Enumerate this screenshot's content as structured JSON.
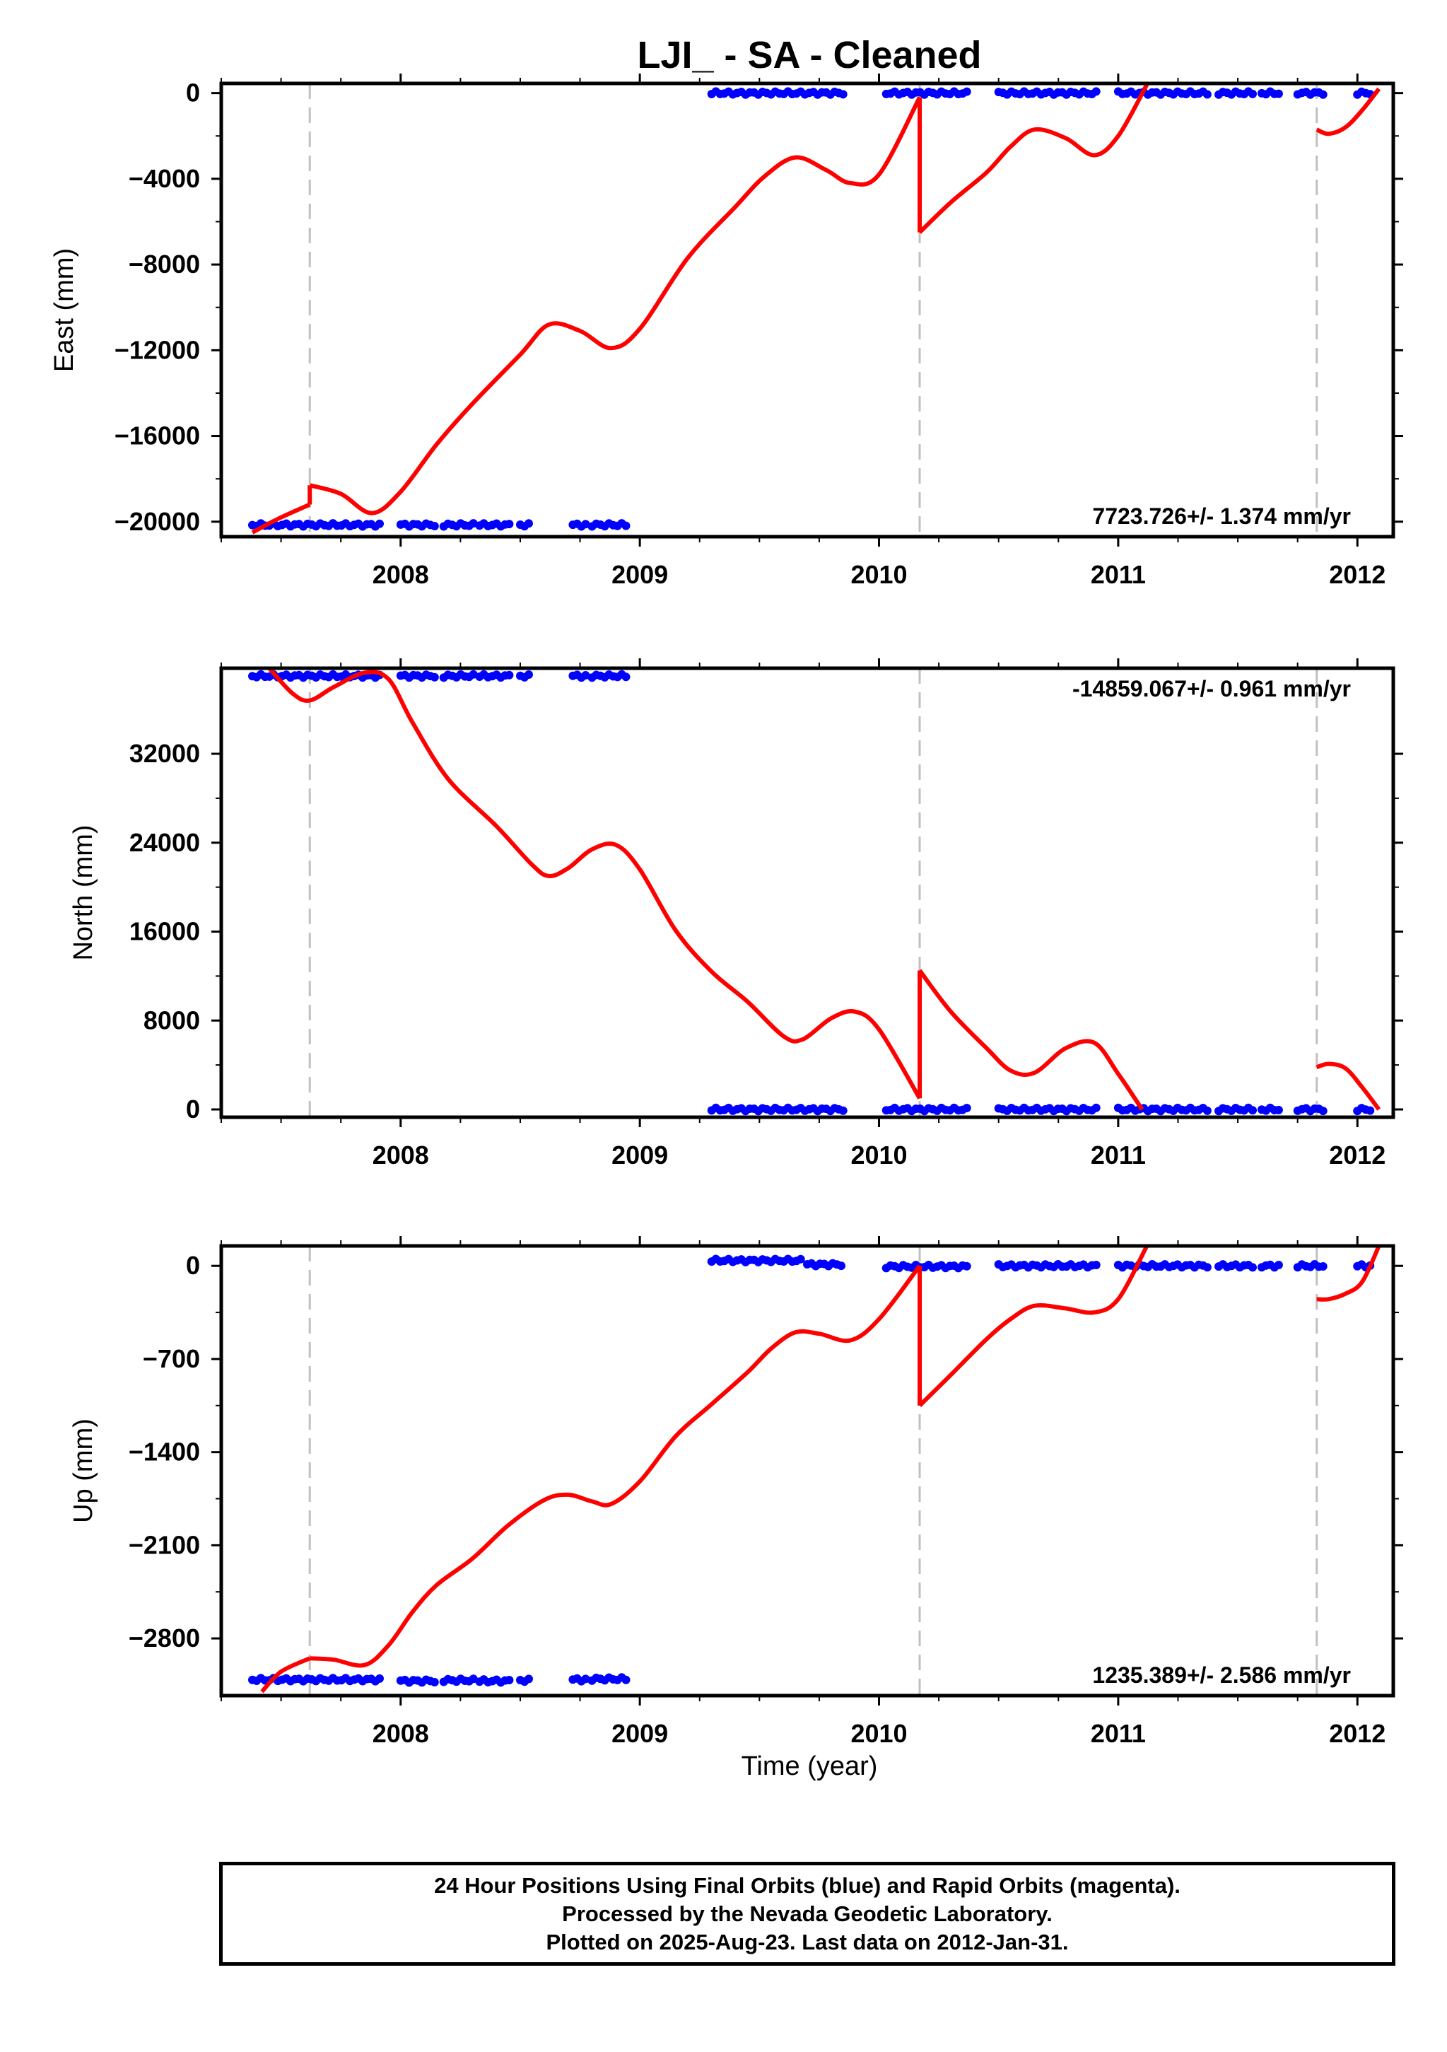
{
  "title": "LJI_  - SA - Cleaned",
  "footer": {
    "line1": "24 Hour Positions Using Final Orbits (blue) and Rapid Orbits (magenta).",
    "line2": "Processed by the Nevada Geodetic Laboratory.",
    "line3": "Plotted on 2025-Aug-23. Last data on 2012-Jan-31."
  },
  "colors": {
    "final_orbits": "#0000ff",
    "model_fit": "#ff0000",
    "event_lines": "#c0c0c0",
    "frame": "#000000"
  },
  "chart_data": [
    {
      "type": "scatter",
      "panel": "east",
      "ylabel": "East (mm)",
      "xlabel": "",
      "xlim": [
        2007.25,
        2012.15
      ],
      "ylim": [
        -20700,
        450
      ],
      "yticks": [
        0,
        -4000,
        -8000,
        -12000,
        -16000,
        -20000
      ],
      "ytick_labels": [
        "0",
        "−4000",
        "−8000",
        "−12000",
        "−16000",
        "−20000"
      ],
      "xticks": [
        2008,
        2009,
        2010,
        2011,
        2012
      ],
      "xtick_labels": [
        "2008",
        "2009",
        "2010",
        "2011",
        "2012"
      ],
      "rate_label": "7723.726+/- 1.374 mm/yr",
      "rate_position": "bottom-right",
      "event_lines": [
        2007.62,
        2010.17,
        2011.83
      ],
      "data_segments": [
        {
          "x": [
            2007.38,
            2007.92
          ],
          "y": -20150
        },
        {
          "x": [
            2008.0,
            2008.15
          ],
          "y": -20150
        },
        {
          "x": [
            2008.18,
            2008.32
          ],
          "y": -20150
        },
        {
          "x": [
            2008.33,
            2008.47
          ],
          "y": -20150
        },
        {
          "x": [
            2008.5,
            2008.55
          ],
          "y": -20150
        },
        {
          "x": [
            2008.72,
            2008.78
          ],
          "y": -20150
        },
        {
          "x": [
            2008.8,
            2008.95
          ],
          "y": -20150
        },
        {
          "x": [
            2009.3,
            2009.85
          ],
          "y": 0
        },
        {
          "x": [
            2010.03,
            2010.38
          ],
          "y": 0
        },
        {
          "x": [
            2010.5,
            2010.92
          ],
          "y": 0
        },
        {
          "x": [
            2011.0,
            2011.38
          ],
          "y": 0
        },
        {
          "x": [
            2011.42,
            2011.57
          ],
          "y": 0
        },
        {
          "x": [
            2011.6,
            2011.68
          ],
          "y": 0
        },
        {
          "x": [
            2011.75,
            2011.87
          ],
          "y": 0
        },
        {
          "x": [
            2012.0,
            2012.07
          ],
          "y": 0
        }
      ],
      "model_segments": [
        {
          "x": [
            2007.38,
            2007.5,
            2007.62
          ],
          "y": [
            -20500,
            -19800,
            -19200
          ]
        },
        {
          "x": [
            2007.62,
            2007.75,
            2007.88,
            2008.0,
            2008.15,
            2008.3,
            2008.5,
            2008.62,
            2008.75,
            2008.88,
            2009.0,
            2009.2,
            2009.4,
            2009.52,
            2009.65,
            2009.78,
            2009.88,
            2010.0,
            2010.17
          ],
          "y": [
            -18300,
            -18700,
            -19600,
            -18600,
            -16400,
            -14500,
            -12200,
            -10800,
            -11100,
            -11900,
            -11000,
            -7700,
            -5300,
            -3900,
            -3000,
            -3600,
            -4200,
            -3800,
            -200
          ]
        },
        {
          "x": [
            2010.17,
            2010.3,
            2010.45,
            2010.55,
            2010.65,
            2010.78,
            2010.9,
            2011.0,
            2011.12
          ],
          "y": [
            -6500,
            -5100,
            -3700,
            -2500,
            -1700,
            -2100,
            -2900,
            -2000,
            400
          ]
        },
        {
          "x": [
            2011.83,
            2011.88,
            2011.95,
            2012.02,
            2012.09
          ],
          "y": [
            -1700,
            -1900,
            -1600,
            -800,
            200
          ]
        }
      ]
    },
    {
      "type": "scatter",
      "panel": "north",
      "ylabel": "North (mm)",
      "xlabel": "",
      "xlim": [
        2007.25,
        2012.15
      ],
      "ylim": [
        -700,
        39700
      ],
      "yticks": [
        0,
        8000,
        16000,
        24000,
        32000
      ],
      "ytick_labels": [
        "0",
        "8000",
        "16000",
        "24000",
        "32000"
      ],
      "xticks": [
        2008,
        2009,
        2010,
        2011,
        2012
      ],
      "xtick_labels": [
        "2008",
        "2009",
        "2010",
        "2011",
        "2012"
      ],
      "rate_label": "-14859.067+/- 0.961 mm/yr",
      "rate_position": "top-right",
      "event_lines": [
        2007.62,
        2010.17,
        2011.83
      ],
      "data_segments": [
        {
          "x": [
            2007.38,
            2007.92
          ],
          "y": 39000
        },
        {
          "x": [
            2008.0,
            2008.15
          ],
          "y": 39000
        },
        {
          "x": [
            2008.18,
            2008.32
          ],
          "y": 39000
        },
        {
          "x": [
            2008.33,
            2008.47
          ],
          "y": 39000
        },
        {
          "x": [
            2008.5,
            2008.55
          ],
          "y": 39000
        },
        {
          "x": [
            2008.72,
            2008.78
          ],
          "y": 39000
        },
        {
          "x": [
            2008.8,
            2008.95
          ],
          "y": 39000
        },
        {
          "x": [
            2009.3,
            2009.85
          ],
          "y": 0
        },
        {
          "x": [
            2010.03,
            2010.38
          ],
          "y": 0
        },
        {
          "x": [
            2010.5,
            2010.92
          ],
          "y": 0
        },
        {
          "x": [
            2011.0,
            2011.38
          ],
          "y": 0
        },
        {
          "x": [
            2011.42,
            2011.57
          ],
          "y": 0
        },
        {
          "x": [
            2011.6,
            2011.68
          ],
          "y": 0
        },
        {
          "x": [
            2011.75,
            2011.87
          ],
          "y": 0
        },
        {
          "x": [
            2012.0,
            2012.07
          ],
          "y": 0
        }
      ],
      "model_segments": [
        {
          "x": [
            2007.45,
            2007.55,
            2007.62,
            2007.72,
            2007.85,
            2007.95,
            2008.05,
            2008.2,
            2008.4,
            2008.55,
            2008.62,
            2008.7,
            2008.8,
            2008.9,
            2009.0,
            2009.15,
            2009.3,
            2009.45,
            2009.6,
            2009.68,
            2009.8,
            2009.9,
            2010.0,
            2010.17
          ],
          "y": [
            39700,
            37400,
            36800,
            38000,
            39300,
            38700,
            34800,
            29700,
            25500,
            22000,
            21000,
            21700,
            23400,
            23800,
            21600,
            16100,
            12400,
            9700,
            6600,
            6300,
            8200,
            8800,
            7200,
            1000
          ]
        },
        {
          "x": [
            2010.17,
            2010.3,
            2010.45,
            2010.55,
            2010.65,
            2010.78,
            2010.9,
            2011.0,
            2011.1
          ],
          "y": [
            12500,
            8800,
            5500,
            3500,
            3300,
            5500,
            6000,
            3200,
            0
          ]
        },
        {
          "x": [
            2011.83,
            2011.88,
            2011.95,
            2012.02,
            2012.09
          ],
          "y": [
            3800,
            4100,
            3700,
            2000,
            0
          ]
        }
      ]
    },
    {
      "type": "scatter",
      "panel": "up",
      "ylabel": "Up (mm)",
      "xlabel": "Time (year)",
      "xlim": [
        2007.25,
        2012.15
      ],
      "ylim": [
        -3230,
        150
      ],
      "yticks": [
        0,
        -700,
        -1400,
        -2100,
        -2800
      ],
      "ytick_labels": [
        "0",
        "−700",
        "−1400",
        "−2100",
        "−2800"
      ],
      "xticks": [
        2008,
        2009,
        2010,
        2011,
        2012
      ],
      "xtick_labels": [
        "2008",
        "2009",
        "2010",
        "2011",
        "2012"
      ],
      "rate_label": "1235.389+/- 2.586 mm/yr",
      "rate_position": "bottom-right",
      "event_lines": [
        2007.62,
        2010.17,
        2011.83
      ],
      "data_segments": [
        {
          "x": [
            2007.38,
            2007.92
          ],
          "y": -3110
        },
        {
          "x": [
            2008.0,
            2008.15
          ],
          "y": -3120
        },
        {
          "x": [
            2008.18,
            2008.32
          ],
          "y": -3115
        },
        {
          "x": [
            2008.33,
            2008.47
          ],
          "y": -3120
        },
        {
          "x": [
            2008.5,
            2008.55
          ],
          "y": -3115
        },
        {
          "x": [
            2008.72,
            2008.78
          ],
          "y": -3110
        },
        {
          "x": [
            2008.8,
            2008.95
          ],
          "y": -3105
        },
        {
          "x": [
            2009.3,
            2009.68
          ],
          "y": 40
        },
        {
          "x": [
            2009.7,
            2009.85
          ],
          "y": 10
        },
        {
          "x": [
            2010.03,
            2010.38
          ],
          "y": -5
        },
        {
          "x": [
            2010.5,
            2010.92
          ],
          "y": 0
        },
        {
          "x": [
            2011.0,
            2011.38
          ],
          "y": 0
        },
        {
          "x": [
            2011.42,
            2011.57
          ],
          "y": 0
        },
        {
          "x": [
            2011.6,
            2011.68
          ],
          "y": 0
        },
        {
          "x": [
            2011.75,
            2011.87
          ],
          "y": 0
        },
        {
          "x": [
            2012.0,
            2012.07
          ],
          "y": 0
        }
      ],
      "model_segments": [
        {
          "x": [
            2007.42,
            2007.5,
            2007.62
          ],
          "y": [
            -3200,
            -3050,
            -2950
          ]
        },
        {
          "x": [
            2007.62,
            2007.72,
            2007.85,
            2007.95,
            2008.05,
            2008.15,
            2008.3,
            2008.45,
            2008.6,
            2008.7,
            2008.8,
            2008.88,
            2009.0,
            2009.15,
            2009.3,
            2009.45,
            2009.55,
            2009.65,
            2009.75,
            2009.88,
            2010.0,
            2010.17
          ],
          "y": [
            -2950,
            -2960,
            -3000,
            -2850,
            -2600,
            -2400,
            -2200,
            -1950,
            -1760,
            -1720,
            -1770,
            -1790,
            -1620,
            -1280,
            -1040,
            -800,
            -620,
            -500,
            -510,
            -560,
            -400,
            0
          ]
        },
        {
          "x": [
            2010.17,
            2010.3,
            2010.45,
            2010.55,
            2010.65,
            2010.78,
            2010.9,
            2011.0,
            2011.12
          ],
          "y": [
            -1050,
            -820,
            -550,
            -400,
            -300,
            -320,
            -350,
            -250,
            150
          ]
        },
        {
          "x": [
            2011.83,
            2011.88,
            2011.95,
            2012.02,
            2012.09
          ],
          "y": [
            -250,
            -250,
            -210,
            -120,
            150
          ]
        }
      ]
    }
  ]
}
